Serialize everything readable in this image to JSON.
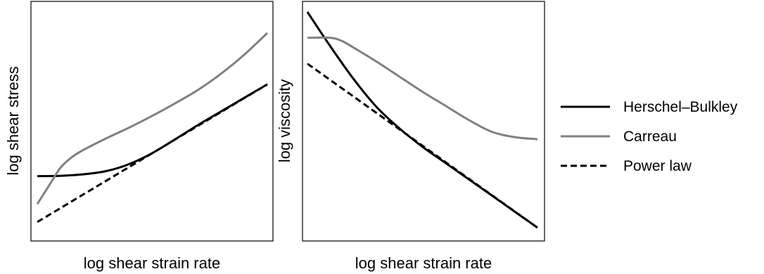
{
  "chart_data": [
    {
      "type": "line",
      "xlabel": "log shear strain rate",
      "ylabel": "log shear stress",
      "xlim": [
        0,
        1
      ],
      "ylim": [
        0,
        1
      ],
      "series": [
        {
          "name": "Herschel–Bulkley",
          "color": "#000000",
          "dash": "solid",
          "x": [
            0,
            0.1,
            0.2,
            0.3,
            0.4,
            0.5,
            0.6,
            0.7,
            0.8,
            0.9,
            1.0
          ],
          "y": [
            0.255,
            0.257,
            0.265,
            0.283,
            0.322,
            0.383,
            0.46,
            0.54,
            0.615,
            0.69,
            0.765
          ]
        },
        {
          "name": "Carreau",
          "color": "#808080",
          "dash": "solid",
          "x": [
            0,
            0.05,
            0.1,
            0.15,
            0.2,
            0.3,
            0.4,
            0.5,
            0.6,
            0.7,
            0.8,
            0.9,
            1.0
          ],
          "y": [
            0.1,
            0.2,
            0.3,
            0.36,
            0.4,
            0.465,
            0.525,
            0.59,
            0.66,
            0.735,
            0.825,
            0.93,
            1.05
          ]
        },
        {
          "name": "Power law",
          "color": "#000000",
          "dash": "dashed",
          "x": [
            0,
            1.0
          ],
          "y": [
            0.0,
            0.765
          ]
        }
      ]
    },
    {
      "type": "line",
      "xlabel": "log shear strain rate",
      "ylabel": "log viscosity",
      "xlim": [
        0,
        1
      ],
      "ylim": [
        0,
        1
      ],
      "series": [
        {
          "name": "Herschel–Bulkley",
          "color": "#000000",
          "dash": "solid",
          "x": [
            0,
            0.1,
            0.2,
            0.3,
            0.4,
            0.5,
            0.6,
            0.7,
            0.8,
            0.9,
            1.0
          ],
          "y": [
            1.0,
            0.84,
            0.69,
            0.56,
            0.46,
            0.375,
            0.3,
            0.225,
            0.15,
            0.075,
            0.0
          ]
        },
        {
          "name": "Carreau",
          "color": "#808080",
          "dash": "solid",
          "x": [
            0,
            0.1,
            0.15,
            0.2,
            0.3,
            0.4,
            0.5,
            0.6,
            0.7,
            0.8,
            0.9,
            1.0
          ],
          "y": [
            0.88,
            0.88,
            0.865,
            0.835,
            0.77,
            0.7,
            0.63,
            0.565,
            0.5,
            0.445,
            0.42,
            0.41
          ]
        },
        {
          "name": "Power law",
          "color": "#000000",
          "dash": "dashed",
          "x": [
            0,
            1.0
          ],
          "y": [
            0.76,
            0.0
          ]
        }
      ]
    }
  ],
  "legend": {
    "items": [
      {
        "label": "Herschel–Bulkley",
        "color": "#000000",
        "dash": "solid"
      },
      {
        "label": "Carreau",
        "color": "#808080",
        "dash": "solid"
      },
      {
        "label": "Power law",
        "color": "#000000",
        "dash": "dashed"
      }
    ]
  }
}
